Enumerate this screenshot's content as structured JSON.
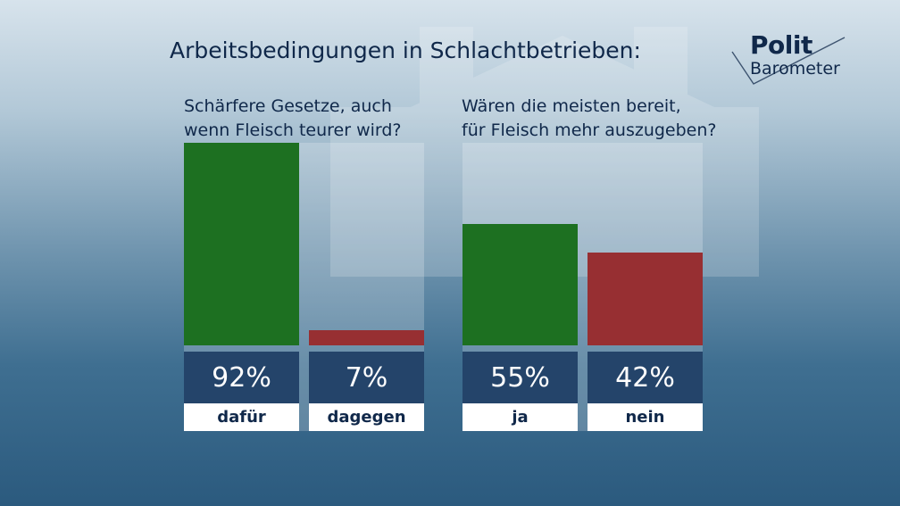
{
  "title": "Arbeitsbedingungen in Schlachtbetrieben:",
  "logo": {
    "line1": "Polit",
    "line2": "Barometer"
  },
  "colors": {
    "green": "#1d7021",
    "red": "#972f32",
    "navy": "#24446a",
    "text": "#10284a"
  },
  "chart_data": [
    {
      "type": "bar",
      "title": "Schärfere Gesetze, auch wenn Fleisch teurer wird?",
      "title_lines": [
        "Schärfere Gesetze, auch",
        "wenn Fleisch teurer wird?"
      ],
      "categories": [
        "dafür",
        "dagegen"
      ],
      "values": [
        92,
        7
      ],
      "value_labels": [
        "92%",
        "7%"
      ],
      "colors": [
        "#1d7021",
        "#972f32"
      ],
      "ylim": [
        0,
        92
      ]
    },
    {
      "type": "bar",
      "title": "Wären die meisten bereit, für Fleisch mehr auszugeben?",
      "title_lines": [
        "Wären die meisten bereit,",
        "für Fleisch mehr auszugeben?"
      ],
      "categories": [
        "ja",
        "nein"
      ],
      "values": [
        55,
        42
      ],
      "value_labels": [
        "55%",
        "42%"
      ],
      "colors": [
        "#1d7021",
        "#972f32"
      ],
      "ylim": [
        0,
        92
      ]
    }
  ]
}
